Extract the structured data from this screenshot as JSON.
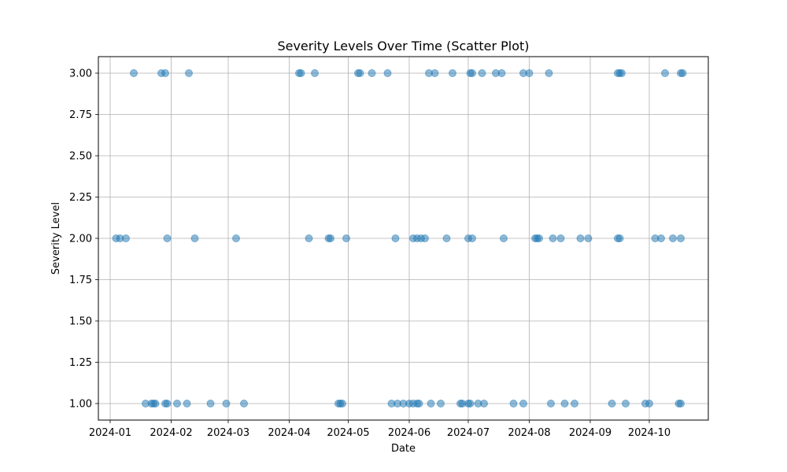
{
  "chart_data": {
    "type": "scatter",
    "title": "Severity Levels Over Time (Scatter Plot)",
    "xlabel": "Date",
    "ylabel": "Severity Level",
    "xlim": [
      "2023-12-26",
      "2024-10-31"
    ],
    "ylim": [
      0.9,
      3.1
    ],
    "grid": true,
    "point_color": "#1f77b4",
    "point_alpha": 0.5,
    "x_ticks": [
      {
        "date": "2024-01-01",
        "label": "2024-01"
      },
      {
        "date": "2024-02-01",
        "label": "2024-02"
      },
      {
        "date": "2024-03-01",
        "label": "2024-03"
      },
      {
        "date": "2024-04-01",
        "label": "2024-04"
      },
      {
        "date": "2024-05-01",
        "label": "2024-05"
      },
      {
        "date": "2024-06-01",
        "label": "2024-06"
      },
      {
        "date": "2024-07-01",
        "label": "2024-07"
      },
      {
        "date": "2024-08-01",
        "label": "2024-08"
      },
      {
        "date": "2024-09-01",
        "label": "2024-09"
      },
      {
        "date": "2024-10-01",
        "label": "2024-10"
      }
    ],
    "y_ticks": [
      {
        "value": 1.0,
        "label": "1.00"
      },
      {
        "value": 1.25,
        "label": "1.25"
      },
      {
        "value": 1.5,
        "label": "1.50"
      },
      {
        "value": 1.75,
        "label": "1.75"
      },
      {
        "value": 2.0,
        "label": "2.00"
      },
      {
        "value": 2.25,
        "label": "2.25"
      },
      {
        "value": 2.5,
        "label": "2.50"
      },
      {
        "value": 2.75,
        "label": "2.75"
      },
      {
        "value": 3.0,
        "label": "3.00"
      }
    ],
    "points": [
      {
        "x": "2024-01-13",
        "y": 3
      },
      {
        "x": "2024-01-27",
        "y": 3
      },
      {
        "x": "2024-01-29",
        "y": 3
      },
      {
        "x": "2024-02-10",
        "y": 3
      },
      {
        "x": "2024-04-06",
        "y": 3
      },
      {
        "x": "2024-04-07",
        "y": 3
      },
      {
        "x": "2024-04-14",
        "y": 3
      },
      {
        "x": "2024-05-06",
        "y": 3
      },
      {
        "x": "2024-05-07",
        "y": 3
      },
      {
        "x": "2024-05-13",
        "y": 3
      },
      {
        "x": "2024-05-21",
        "y": 3
      },
      {
        "x": "2024-06-11",
        "y": 3
      },
      {
        "x": "2024-06-14",
        "y": 3
      },
      {
        "x": "2024-06-23",
        "y": 3
      },
      {
        "x": "2024-07-02",
        "y": 3
      },
      {
        "x": "2024-07-03",
        "y": 3
      },
      {
        "x": "2024-07-08",
        "y": 3
      },
      {
        "x": "2024-07-15",
        "y": 3
      },
      {
        "x": "2024-07-18",
        "y": 3
      },
      {
        "x": "2024-07-29",
        "y": 3
      },
      {
        "x": "2024-08-01",
        "y": 3
      },
      {
        "x": "2024-08-11",
        "y": 3
      },
      {
        "x": "2024-09-15",
        "y": 3
      },
      {
        "x": "2024-09-16",
        "y": 3
      },
      {
        "x": "2024-09-17",
        "y": 3
      },
      {
        "x": "2024-10-09",
        "y": 3
      },
      {
        "x": "2024-10-17",
        "y": 3
      },
      {
        "x": "2024-10-18",
        "y": 3
      },
      {
        "x": "2024-01-04",
        "y": 2
      },
      {
        "x": "2024-01-06",
        "y": 2
      },
      {
        "x": "2024-01-09",
        "y": 2
      },
      {
        "x": "2024-01-30",
        "y": 2
      },
      {
        "x": "2024-02-13",
        "y": 2
      },
      {
        "x": "2024-03-05",
        "y": 2
      },
      {
        "x": "2024-04-11",
        "y": 2
      },
      {
        "x": "2024-04-21",
        "y": 2
      },
      {
        "x": "2024-04-22",
        "y": 2
      },
      {
        "x": "2024-04-30",
        "y": 2
      },
      {
        "x": "2024-05-25",
        "y": 2
      },
      {
        "x": "2024-06-03",
        "y": 2
      },
      {
        "x": "2024-06-05",
        "y": 2
      },
      {
        "x": "2024-06-07",
        "y": 2
      },
      {
        "x": "2024-06-09",
        "y": 2
      },
      {
        "x": "2024-06-20",
        "y": 2
      },
      {
        "x": "2024-07-01",
        "y": 2
      },
      {
        "x": "2024-07-03",
        "y": 2
      },
      {
        "x": "2024-07-19",
        "y": 2
      },
      {
        "x": "2024-08-04",
        "y": 2
      },
      {
        "x": "2024-08-05",
        "y": 2
      },
      {
        "x": "2024-08-06",
        "y": 2
      },
      {
        "x": "2024-08-13",
        "y": 2
      },
      {
        "x": "2024-08-17",
        "y": 2
      },
      {
        "x": "2024-08-27",
        "y": 2
      },
      {
        "x": "2024-08-31",
        "y": 2
      },
      {
        "x": "2024-09-15",
        "y": 2
      },
      {
        "x": "2024-09-16",
        "y": 2
      },
      {
        "x": "2024-10-04",
        "y": 2
      },
      {
        "x": "2024-10-07",
        "y": 2
      },
      {
        "x": "2024-10-13",
        "y": 2
      },
      {
        "x": "2024-10-17",
        "y": 2
      },
      {
        "x": "2024-01-19",
        "y": 1
      },
      {
        "x": "2024-01-22",
        "y": 1
      },
      {
        "x": "2024-01-23",
        "y": 1
      },
      {
        "x": "2024-01-24",
        "y": 1
      },
      {
        "x": "2024-01-29",
        "y": 1
      },
      {
        "x": "2024-01-30",
        "y": 1
      },
      {
        "x": "2024-02-04",
        "y": 1
      },
      {
        "x": "2024-02-09",
        "y": 1
      },
      {
        "x": "2024-02-21",
        "y": 1
      },
      {
        "x": "2024-02-29",
        "y": 1
      },
      {
        "x": "2024-03-09",
        "y": 1
      },
      {
        "x": "2024-04-26",
        "y": 1
      },
      {
        "x": "2024-04-27",
        "y": 1
      },
      {
        "x": "2024-04-28",
        "y": 1
      },
      {
        "x": "2024-05-23",
        "y": 1
      },
      {
        "x": "2024-05-26",
        "y": 1
      },
      {
        "x": "2024-05-29",
        "y": 1
      },
      {
        "x": "2024-06-01",
        "y": 1
      },
      {
        "x": "2024-06-03",
        "y": 1
      },
      {
        "x": "2024-06-05",
        "y": 1
      },
      {
        "x": "2024-06-06",
        "y": 1
      },
      {
        "x": "2024-06-12",
        "y": 1
      },
      {
        "x": "2024-06-17",
        "y": 1
      },
      {
        "x": "2024-06-27",
        "y": 1
      },
      {
        "x": "2024-06-28",
        "y": 1
      },
      {
        "x": "2024-07-01",
        "y": 1
      },
      {
        "x": "2024-07-02",
        "y": 1
      },
      {
        "x": "2024-07-06",
        "y": 1
      },
      {
        "x": "2024-07-09",
        "y": 1
      },
      {
        "x": "2024-07-24",
        "y": 1
      },
      {
        "x": "2024-07-29",
        "y": 1
      },
      {
        "x": "2024-08-12",
        "y": 1
      },
      {
        "x": "2024-08-19",
        "y": 1
      },
      {
        "x": "2024-08-24",
        "y": 1
      },
      {
        "x": "2024-09-12",
        "y": 1
      },
      {
        "x": "2024-09-19",
        "y": 1
      },
      {
        "x": "2024-09-29",
        "y": 1
      },
      {
        "x": "2024-10-01",
        "y": 1
      },
      {
        "x": "2024-10-16",
        "y": 1
      },
      {
        "x": "2024-10-17",
        "y": 1
      }
    ]
  }
}
